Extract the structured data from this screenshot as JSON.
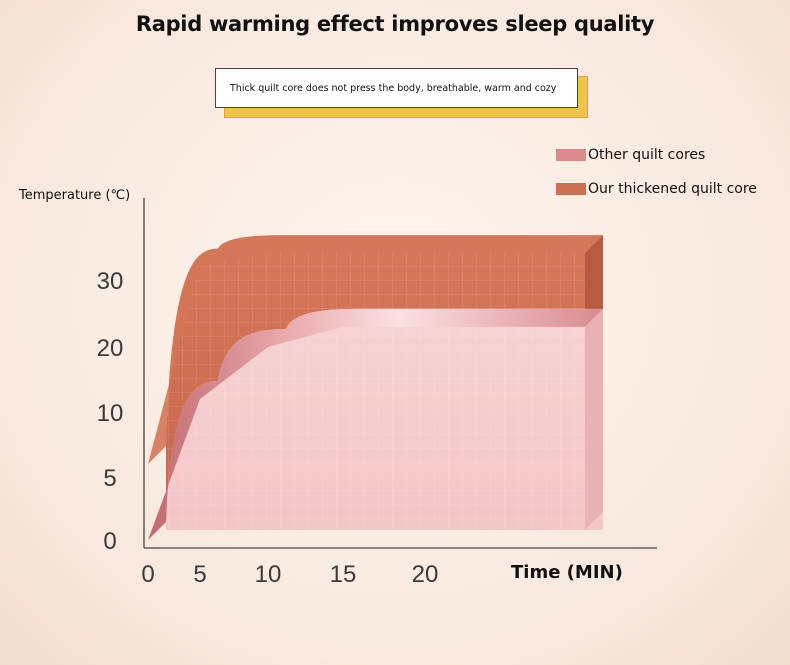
{
  "chart_data": {
    "type": "area",
    "title": "Rapid warming effect improves sleep quality",
    "subtitle": "Thick quilt core does not press the body, breathable, warm and cozy",
    "ylabel": "Temperature (℃)",
    "xlabel": "Time (MIN)",
    "x_ticks": [
      "0",
      "5",
      "10",
      "15",
      "20"
    ],
    "y_ticks": [
      "0",
      "5",
      "10",
      "20",
      "30"
    ],
    "legend_position": "top-right",
    "series": [
      {
        "name": "Our thickened quilt core",
        "color": "#cd6f52",
        "points": [
          [
            0,
            6
          ],
          [
            5,
            32
          ],
          [
            10,
            34
          ],
          [
            15,
            34
          ],
          [
            20,
            34
          ],
          [
            30,
            34
          ]
        ]
      },
      {
        "name": "Other quilt cores",
        "color": "#f1c2c6",
        "points": [
          [
            0,
            0
          ],
          [
            5,
            12
          ],
          [
            10,
            20
          ],
          [
            15,
            23
          ],
          [
            20,
            23
          ],
          [
            30,
            23
          ]
        ]
      }
    ]
  },
  "legend": [
    {
      "label": "Other quilt cores",
      "color": "#d98a8a"
    },
    {
      "label": "Our thickened quilt core",
      "color": "#cd6f52"
    }
  ]
}
